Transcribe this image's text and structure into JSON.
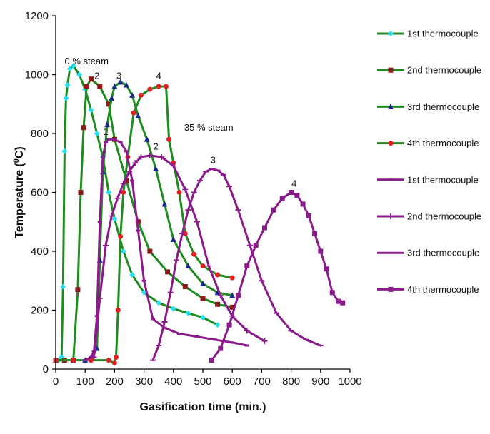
{
  "chart_data": {
    "type": "line",
    "title": "",
    "xlabel": "Gasification time (min.)",
    "ylabel_main": "Temperature (",
    "ylabel_sup": "0",
    "ylabel_end": "C)",
    "xlim": [
      0,
      1000
    ],
    "ylim": [
      0,
      1200
    ],
    "xticks": [
      0,
      100,
      200,
      300,
      400,
      500,
      600,
      700,
      800,
      900,
      1000
    ],
    "yticks": [
      0,
      200,
      400,
      600,
      800,
      1000,
      1200
    ],
    "grid": false,
    "legend_position": "right",
    "annotations": [
      {
        "text": "0 % steam",
        "x": 105,
        "y": 1035
      },
      {
        "text": "35 % steam",
        "x": 520,
        "y": 810
      },
      {
        "text": "2",
        "x": 140,
        "y": 985
      },
      {
        "text": "3",
        "x": 215,
        "y": 985
      },
      {
        "text": "4",
        "x": 350,
        "y": 985
      },
      {
        "text": "1",
        "x": 170,
        "y": 795
      },
      {
        "text": "2",
        "x": 340,
        "y": 745
      },
      {
        "text": "3",
        "x": 535,
        "y": 700
      },
      {
        "text": "4",
        "x": 810,
        "y": 620
      }
    ],
    "series": [
      {
        "name": "1st thermocouple",
        "line_color": "#1e8c1e",
        "marker_color": "#22e0f0",
        "marker": "diamond",
        "x": [
          10,
          20,
          25,
          30,
          35,
          40,
          48,
          60,
          80,
          100,
          120,
          140,
          160,
          180,
          200,
          230,
          260,
          300,
          350,
          400,
          450,
          500,
          550
        ],
        "y": [
          30,
          40,
          280,
          740,
          920,
          965,
          1020,
          1030,
          1000,
          950,
          880,
          800,
          720,
          600,
          510,
          400,
          320,
          260,
          225,
          205,
          190,
          175,
          150
        ]
      },
      {
        "name": "2nd thermocouple",
        "line_color": "#1e8c1e",
        "marker_color": "#8b1a1a",
        "marker": "square",
        "x": [
          0,
          30,
          60,
          75,
          85,
          95,
          105,
          120,
          150,
          180,
          200,
          240,
          280,
          320,
          380,
          440,
          500,
          550,
          600
        ],
        "y": [
          30,
          30,
          30,
          270,
          600,
          820,
          960,
          985,
          960,
          900,
          780,
          640,
          500,
          400,
          330,
          280,
          240,
          220,
          210
        ]
      },
      {
        "name": "3rd thermocouple",
        "line_color": "#1e8c1e",
        "marker_color": "#1a2a8b",
        "marker": "triangle",
        "x": [
          100,
          120,
          140,
          150,
          160,
          175,
          190,
          200,
          220,
          240,
          260,
          280,
          310,
          340,
          370,
          400,
          450,
          500,
          550,
          600
        ],
        "y": [
          30,
          40,
          70,
          370,
          670,
          830,
          920,
          960,
          975,
          965,
          930,
          860,
          780,
          680,
          560,
          440,
          350,
          290,
          260,
          250
        ]
      },
      {
        "name": "4th thermocouple",
        "line_color": "#1e8c1e",
        "marker_color": "#e02020",
        "marker": "circle",
        "x": [
          0,
          60,
          120,
          180,
          200,
          205,
          212,
          220,
          230,
          245,
          265,
          290,
          320,
          350,
          375,
          385,
          400,
          420,
          440,
          470,
          500,
          550,
          600
        ],
        "y": [
          30,
          30,
          30,
          30,
          20,
          40,
          200,
          450,
          600,
          720,
          870,
          930,
          950,
          960,
          960,
          780,
          700,
          600,
          460,
          390,
          350,
          320,
          310
        ]
      },
      {
        "name": "1st thermocouple",
        "line_color": "#8b1a8b",
        "marker_color": "#8b1a8b",
        "marker": "dash",
        "x": [
          100,
          120,
          130,
          140,
          150,
          160,
          170,
          180,
          200,
          220,
          240,
          260,
          280,
          300,
          330,
          370,
          420,
          480,
          540,
          600,
          650
        ],
        "y": [
          30,
          40,
          60,
          180,
          500,
          720,
          770,
          780,
          780,
          770,
          740,
          640,
          470,
          300,
          170,
          140,
          120,
          110,
          100,
          90,
          80
        ]
      },
      {
        "name": "2nd thermocouple",
        "line_color": "#8b1a8b",
        "marker_color": "#8b1a8b",
        "marker": "plus",
        "x": [
          130,
          150,
          170,
          190,
          210,
          230,
          250,
          270,
          290,
          320,
          360,
          400,
          440,
          480,
          520,
          560,
          600,
          650,
          710
        ],
        "y": [
          40,
          240,
          420,
          520,
          580,
          630,
          670,
          700,
          720,
          725,
          720,
          690,
          610,
          500,
          350,
          250,
          180,
          130,
          95
        ]
      },
      {
        "name": "3rd thermocouple",
        "line_color": "#8b1a8b",
        "marker_color": "#8b1a8b",
        "marker": "minus",
        "x": [
          330,
          350,
          370,
          390,
          410,
          430,
          450,
          470,
          490,
          510,
          530,
          550,
          570,
          590,
          620,
          660,
          700,
          750,
          800,
          850,
          900
        ],
        "y": [
          30,
          80,
          160,
          260,
          370,
          460,
          540,
          600,
          640,
          670,
          680,
          675,
          660,
          620,
          540,
          420,
          300,
          190,
          130,
          100,
          80
        ]
      },
      {
        "name": "4th thermocouple",
        "line_color": "#8b1a8b",
        "marker_color": "#8b1a8b",
        "marker": "square",
        "x": [
          530,
          560,
          590,
          620,
          650,
          680,
          710,
          740,
          770,
          800,
          820,
          840,
          860,
          880,
          900,
          920,
          940,
          960,
          975
        ],
        "y": [
          30,
          70,
          150,
          250,
          350,
          420,
          480,
          540,
          580,
          600,
          590,
          560,
          520,
          460,
          400,
          340,
          260,
          230,
          225
        ]
      }
    ]
  }
}
